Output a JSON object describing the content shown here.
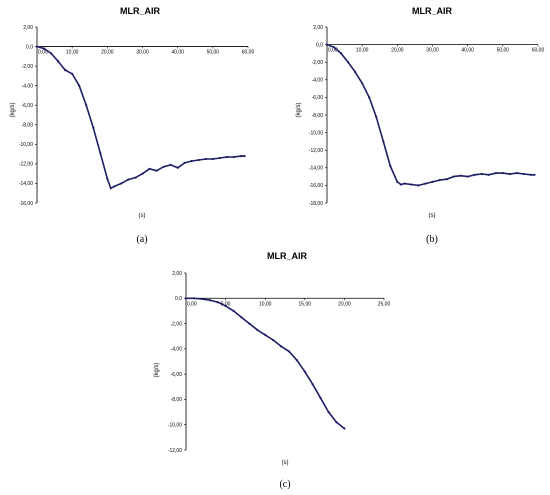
{
  "series_color": "#1f1f66",
  "chart_data": [
    {
      "type": "line",
      "panel_label": "(a)",
      "title": "MLR_AIR",
      "xlabel": "(s)",
      "ylabel": "(kg/s)",
      "xlim": [
        0,
        60
      ],
      "ylim": [
        -16,
        2
      ],
      "xticks": [
        "0,00",
        "10,00",
        "20,00",
        "30,00",
        "40,00",
        "50,00",
        "60,00"
      ],
      "yticks": [
        "2,00",
        "0,00",
        "-2,00",
        "-4,00",
        "-6,00",
        "-8,00",
        "-10,00",
        "-12,00",
        "-14,00",
        "-16,00"
      ],
      "origin_label": "0,0",
      "series": [
        {
          "x": [
            0,
            2,
            4,
            6,
            8,
            10,
            12,
            14,
            16,
            18,
            20,
            21,
            22,
            24,
            26,
            28,
            30,
            32,
            34,
            36,
            38,
            40,
            42,
            44,
            46,
            48,
            50,
            52,
            54,
            56,
            58,
            59
          ],
          "y": [
            0,
            -0.2,
            -0.7,
            -1.5,
            -2.4,
            -2.8,
            -4.0,
            -6.0,
            -8.3,
            -10.9,
            -13.5,
            -14.5,
            -14.3,
            -14.0,
            -13.6,
            -13.4,
            -13.0,
            -12.5,
            -12.7,
            -12.3,
            -12.1,
            -12.4,
            -11.9,
            -11.7,
            -11.6,
            -11.5,
            -11.5,
            -11.4,
            -11.3,
            -11.3,
            -11.2,
            -11.2
          ]
        }
      ]
    },
    {
      "type": "line",
      "panel_label": "(b)",
      "title": "MLR_AIR",
      "xlabel": "(s)",
      "ylabel": "(kg/s)",
      "xlim": [
        0,
        60
      ],
      "ylim": [
        -18,
        2
      ],
      "xticks": [
        "0,00",
        "10,00",
        "20,00",
        "30,00",
        "40,00",
        "50,00",
        "60,00"
      ],
      "yticks": [
        "2,00",
        "0,00",
        "-2,00",
        "-4,00",
        "-6,00",
        "-8,00",
        "-10,00",
        "-12,00",
        "-14,00",
        "-16,00",
        "-18,00"
      ],
      "origin_label": "0,0",
      "series": [
        {
          "x": [
            0,
            2,
            4,
            6,
            8,
            10,
            12,
            14,
            16,
            18,
            20,
            21,
            22,
            24,
            26,
            28,
            30,
            32,
            34,
            36,
            38,
            40,
            42,
            44,
            46,
            48,
            50,
            52,
            54,
            56,
            58,
            59
          ],
          "y": [
            0,
            -0.3,
            -1.0,
            -2.0,
            -3.1,
            -4.4,
            -6.0,
            -8.2,
            -11.0,
            -13.8,
            -15.6,
            -15.9,
            -15.8,
            -15.9,
            -16.0,
            -15.8,
            -15.6,
            -15.4,
            -15.3,
            -15.0,
            -14.9,
            -15.0,
            -14.8,
            -14.7,
            -14.8,
            -14.6,
            -14.6,
            -14.7,
            -14.6,
            -14.7,
            -14.8,
            -14.8
          ]
        }
      ]
    },
    {
      "type": "line",
      "panel_label": "(c)",
      "title": "MLR_AIR",
      "xlabel": "(s)",
      "ylabel": "(kg/s)",
      "xlim": [
        0,
        25
      ],
      "ylim": [
        -12,
        2
      ],
      "xticks": [
        "0,00",
        "5,00",
        "10,00",
        "15,00",
        "20,00",
        "25,00"
      ],
      "yticks": [
        "2,00",
        "0,00",
        "-2,00",
        "-4,00",
        "-6,00",
        "-8,00",
        "-10,00",
        "-12,00"
      ],
      "origin_label": "0,0",
      "series": [
        {
          "x": [
            0,
            1,
            2,
            3,
            4,
            5,
            6,
            7,
            8,
            9,
            10,
            11,
            12,
            13,
            14,
            15,
            16,
            17,
            18,
            19,
            20
          ],
          "y": [
            0,
            0,
            -0.05,
            -0.15,
            -0.3,
            -0.6,
            -1.0,
            -1.5,
            -2.0,
            -2.5,
            -2.9,
            -3.3,
            -3.8,
            -4.2,
            -4.9,
            -5.8,
            -6.8,
            -7.9,
            -9.0,
            -9.8,
            -10.3
          ]
        }
      ]
    }
  ]
}
